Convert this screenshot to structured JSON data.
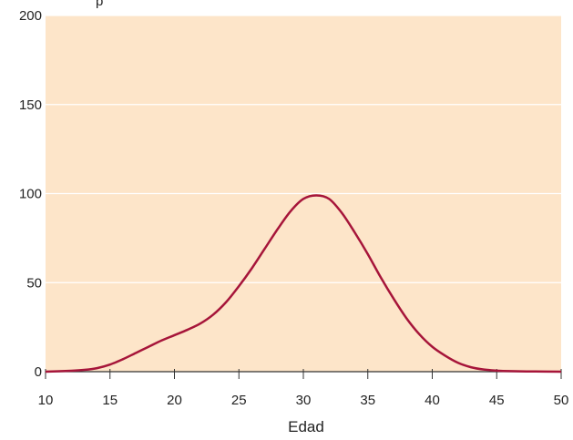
{
  "chart_data": {
    "type": "line",
    "title": "",
    "top_label": "p",
    "xlabel": "Edad",
    "ylabel": "",
    "xlim": [
      10,
      50
    ],
    "ylim": [
      0,
      200
    ],
    "x_ticks": [
      10,
      15,
      20,
      25,
      30,
      35,
      40,
      45,
      50
    ],
    "y_ticks": [
      0,
      50,
      100,
      150,
      200
    ],
    "grid": "horizontal",
    "legend": "none",
    "colors": {
      "plot_background": "#fde5c9",
      "gridline": "#ffffff",
      "line": "#a6153a",
      "axis": "#333333"
    },
    "series": [
      {
        "x": [
          10,
          12,
          13,
          14,
          15,
          16,
          17,
          18,
          19,
          20,
          21,
          22,
          23,
          24,
          25,
          26,
          27,
          28,
          29,
          30,
          31,
          32,
          33,
          34,
          35,
          36,
          37,
          38,
          39,
          40,
          41,
          42,
          43,
          44,
          45,
          46,
          48,
          50
        ],
        "values": [
          0,
          0.5,
          1,
          2,
          4,
          7,
          10.5,
          14,
          17.5,
          20.5,
          23.5,
          27,
          32,
          39,
          48,
          58,
          69,
          80,
          90,
          97,
          99,
          97,
          89,
          78,
          66,
          53,
          41,
          30,
          21,
          14,
          9,
          5,
          2.5,
          1.2,
          0.6,
          0.3,
          0.1,
          0
        ]
      }
    ]
  }
}
